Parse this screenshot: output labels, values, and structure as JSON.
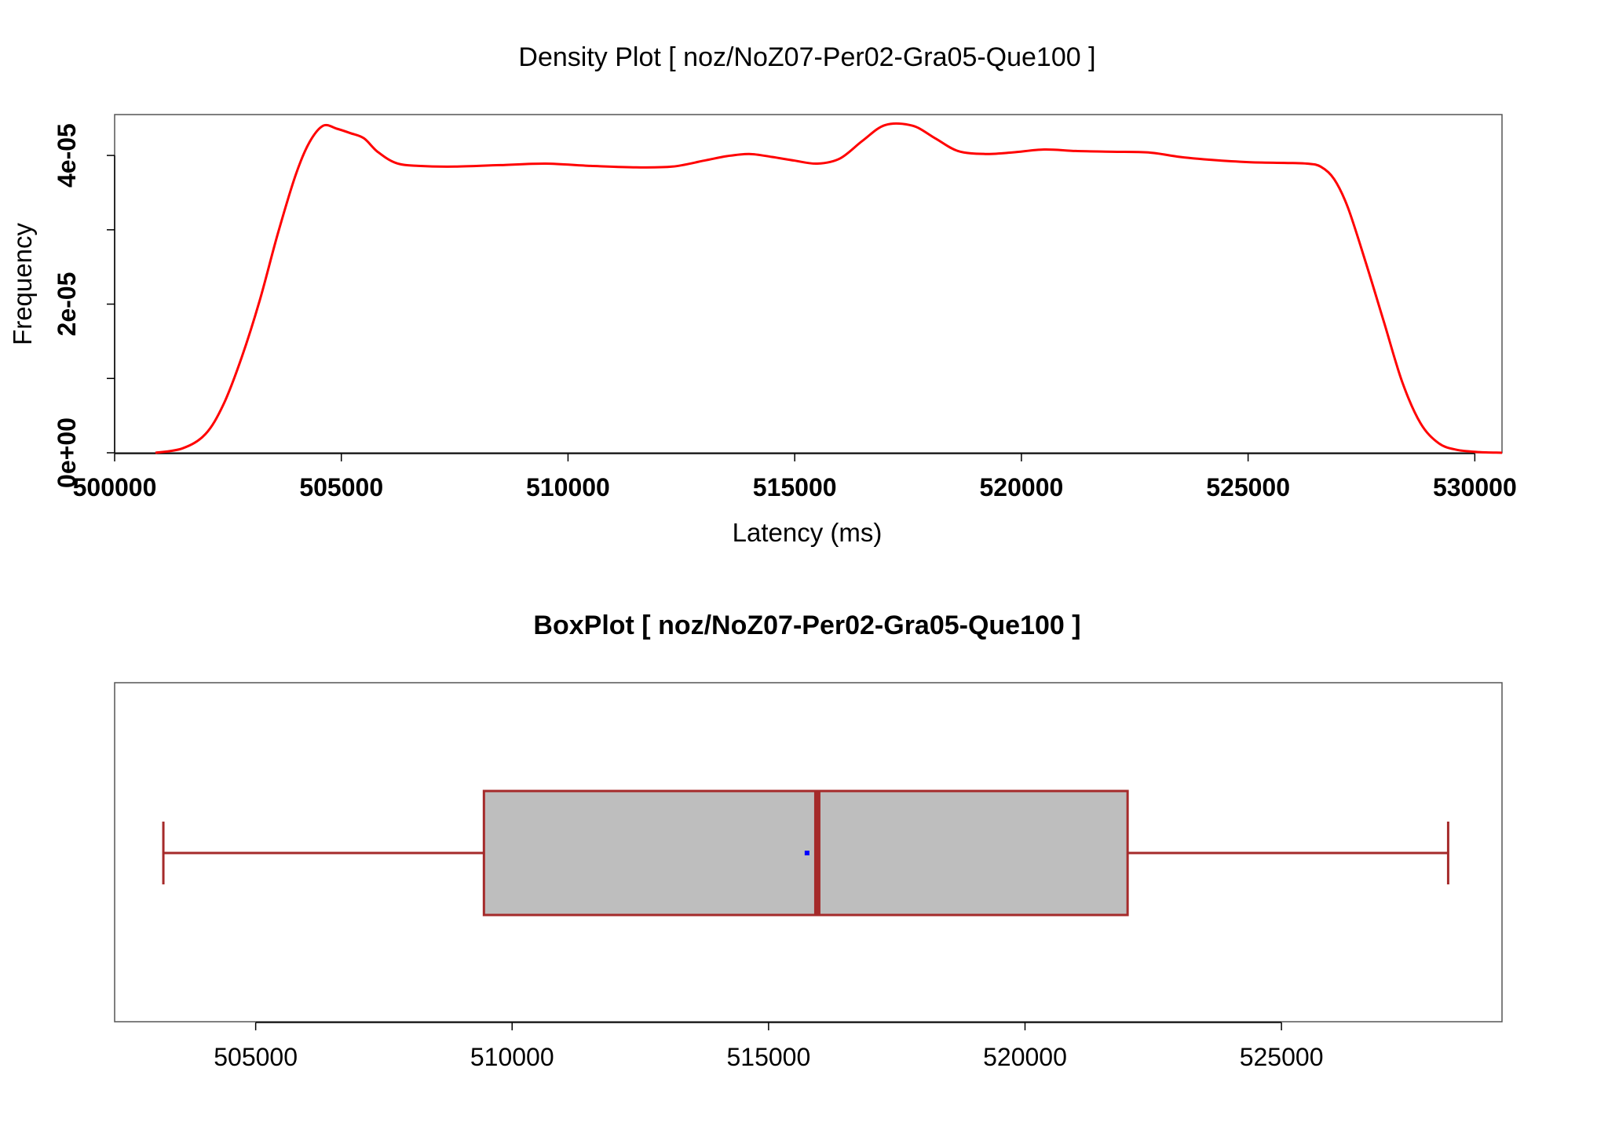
{
  "chart_data": [
    {
      "type": "line",
      "title": "Density Plot [ noz/NoZ07-Per02-Gra05-Que100 ]",
      "xlabel": "Latency (ms)",
      "ylabel": "Frequency",
      "xlim": [
        500000,
        530600
      ],
      "ylim": [
        0,
        4.55e-05
      ],
      "x_ticks": [
        500000,
        505000,
        510000,
        515000,
        520000,
        525000,
        530000
      ],
      "x_tick_labels": [
        "500000",
        "505000",
        "510000",
        "515000",
        "520000",
        "525000",
        "530000"
      ],
      "y_ticks": [
        0,
        1e-05,
        2e-05,
        3e-05,
        4e-05
      ],
      "y_tick_labels": [
        "0e+00",
        "",
        "2e-05",
        "",
        "4e-05"
      ],
      "grid": false,
      "line_color": "#ff0000",
      "series": [
        {
          "x": [
            500900,
            501500,
            502000,
            502400,
            502800,
            503200,
            503600,
            504000,
            504300,
            504600,
            504900,
            505200,
            505500,
            505800,
            506200,
            506700,
            507500,
            508500,
            509500,
            510500,
            511500,
            512300,
            513000,
            513500,
            514000,
            514500,
            515000,
            515500,
            516000,
            516500,
            517000,
            517600,
            518100,
            518600,
            519200,
            519800,
            520500,
            521200,
            522000,
            522800,
            523500,
            524200,
            525000,
            525800,
            526300,
            526600,
            526900,
            527200,
            527600,
            528000,
            528400,
            528800,
            529200,
            529600,
            530100,
            530600
          ],
          "values": [
            0.0,
            6e-07,
            2.5e-06,
            6.5e-06,
            1.28e-05,
            2.05e-05,
            2.95e-05,
            3.75e-05,
            4.18e-05,
            4.4e-05,
            4.36e-05,
            4.3e-05,
            4.23e-05,
            4.05e-05,
            3.9e-05,
            3.86e-05,
            3.85e-05,
            3.87e-05,
            3.89e-05,
            3.86e-05,
            3.84e-05,
            3.85e-05,
            3.93e-05,
            3.99e-05,
            4.02e-05,
            3.98e-05,
            3.93e-05,
            3.89e-05,
            3.96e-05,
            4.2e-05,
            4.41e-05,
            4.4e-05,
            4.23e-05,
            4.06e-05,
            4.02e-05,
            4.04e-05,
            4.08e-05,
            4.06e-05,
            4.05e-05,
            4.04e-05,
            3.98e-05,
            3.94e-05,
            3.91e-05,
            3.9e-05,
            3.89e-05,
            3.85e-05,
            3.68e-05,
            3.3e-05,
            2.55e-05,
            1.75e-05,
            9.5e-06,
            4e-06,
            1.3e-06,
            4e-07,
            1e-07,
            0.0
          ]
        }
      ]
    },
    {
      "type": "box",
      "title": "BoxPlot [ noz/NoZ07-Per02-Gra05-Que100 ]",
      "xlim": [
        502250,
        529300
      ],
      "x_ticks": [
        505000,
        510000,
        515000,
        520000,
        525000
      ],
      "x_tick_labels": [
        "505000",
        "510000",
        "515000",
        "520000",
        "525000"
      ],
      "grid": false,
      "box_color": "#a52a2a",
      "box_fill": "#bebebe",
      "mean_color": "#0000ff",
      "stats": {
        "whisker_low": 503200,
        "q1": 509450,
        "median": 515950,
        "q3": 522000,
        "whisker_high": 528250,
        "mean": 515750
      }
    }
  ]
}
